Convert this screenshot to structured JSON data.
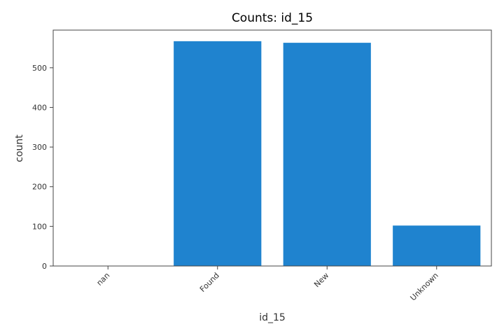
{
  "chart_data": {
    "type": "bar",
    "title": "Counts: id_15",
    "xlabel": "id_15",
    "ylabel": "count",
    "categories": [
      "nan",
      "Found",
      "New",
      "Unknown"
    ],
    "values": [
      0,
      567,
      563,
      102
    ],
    "ylim": [
      0,
      595
    ],
    "yticks": [
      0,
      100,
      200,
      300,
      400,
      500
    ],
    "grid": false,
    "bar_color": "#1f83cf",
    "axis_color": "#444444"
  }
}
